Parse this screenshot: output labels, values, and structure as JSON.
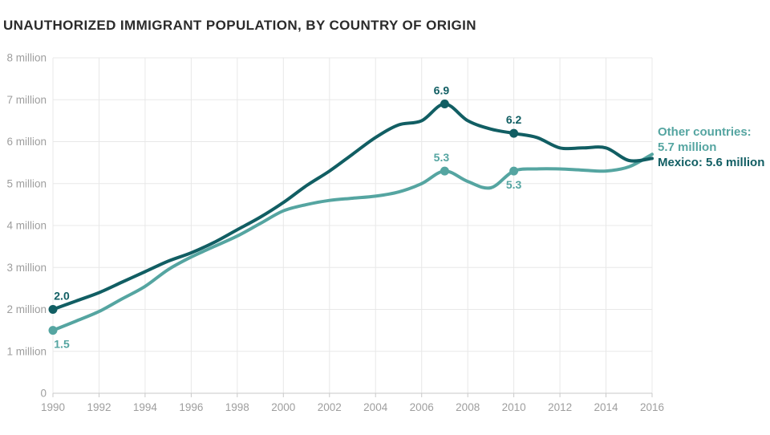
{
  "title": "UNAUTHORIZED IMMIGRANT POPULATION, BY COUNTRY OF ORIGIN",
  "colors": {
    "mexico": "#115e63",
    "other": "#55a5a1",
    "grid": "#e8e8e8",
    "axis": "#c9c9c9",
    "tick_text": "#9e9e9e",
    "title_text": "#2b2b2b"
  },
  "end_labels": {
    "other_line1": "Other countries:",
    "other_line2": "5.7 million",
    "mexico": "Mexico: 5.6 million"
  },
  "chart_data": {
    "type": "line",
    "title": "UNAUTHORIZED IMMIGRANT POPULATION, BY COUNTRY OF ORIGIN",
    "xlabel": "",
    "ylabel": "",
    "xlim": [
      1990,
      2016
    ],
    "ylim": [
      0,
      8
    ],
    "grid": true,
    "x": [
      1990,
      1991,
      1992,
      1993,
      1994,
      1995,
      1996,
      1997,
      1998,
      1999,
      2000,
      2001,
      2002,
      2003,
      2004,
      2005,
      2006,
      2007,
      2008,
      2009,
      2010,
      2011,
      2012,
      2013,
      2014,
      2015,
      2016
    ],
    "x_ticks": [
      1990,
      1992,
      1994,
      1996,
      1998,
      2000,
      2002,
      2004,
      2006,
      2008,
      2010,
      2012,
      2014,
      2016
    ],
    "x_tick_labels": [
      "1990",
      "1992",
      "1994",
      "1996",
      "1998",
      "2000",
      "2002",
      "2004",
      "2006",
      "2008",
      "2010",
      "2012",
      "2014",
      "2016"
    ],
    "y_ticks": [
      {
        "value": 0,
        "label": "0"
      },
      {
        "value": 1,
        "label": "1 million"
      },
      {
        "value": 2,
        "label": "2 million"
      },
      {
        "value": 3,
        "label": "3 million"
      },
      {
        "value": 4,
        "label": "4 million"
      },
      {
        "value": 5,
        "label": "5 million"
      },
      {
        "value": 6,
        "label": "6 million"
      },
      {
        "value": 7,
        "label": "7 million"
      },
      {
        "value": 8,
        "label": "8 million"
      }
    ],
    "series": [
      {
        "name": "Other countries",
        "color": "#55a5a1",
        "end_value": "5.7 million",
        "values": [
          1.5,
          1.72,
          1.95,
          2.25,
          2.55,
          2.95,
          3.25,
          3.5,
          3.75,
          4.05,
          4.35,
          4.5,
          4.6,
          4.65,
          4.7,
          4.8,
          5.0,
          5.3,
          5.05,
          4.9,
          5.3,
          5.35,
          5.35,
          5.32,
          5.3,
          5.4,
          5.7
        ],
        "markers": [
          {
            "year": 1990,
            "value": 1.5,
            "label": "1.5",
            "position": "below",
            "dx": 11
          },
          {
            "year": 2007,
            "value": 5.3,
            "label": "5.3",
            "position": "above",
            "dx": -4
          },
          {
            "year": 2010,
            "value": 5.3,
            "label": "5.3",
            "position": "below",
            "dx": 0
          }
        ]
      },
      {
        "name": "Mexico",
        "color": "#115e63",
        "end_value": "5.6 million",
        "values": [
          2.0,
          2.2,
          2.4,
          2.65,
          2.9,
          3.15,
          3.35,
          3.6,
          3.9,
          4.2,
          4.55,
          4.95,
          5.3,
          5.7,
          6.1,
          6.4,
          6.5,
          6.9,
          6.5,
          6.3,
          6.2,
          6.1,
          5.85,
          5.85,
          5.85,
          5.55,
          5.6
        ],
        "markers": [
          {
            "year": 1990,
            "value": 2.0,
            "label": "2.0",
            "position": "above",
            "dx": 11
          },
          {
            "year": 2007,
            "value": 6.9,
            "label": "6.9",
            "position": "above",
            "dx": -4
          },
          {
            "year": 2010,
            "value": 6.2,
            "label": "6.2",
            "position": "above",
            "dx": 0
          }
        ]
      }
    ]
  }
}
